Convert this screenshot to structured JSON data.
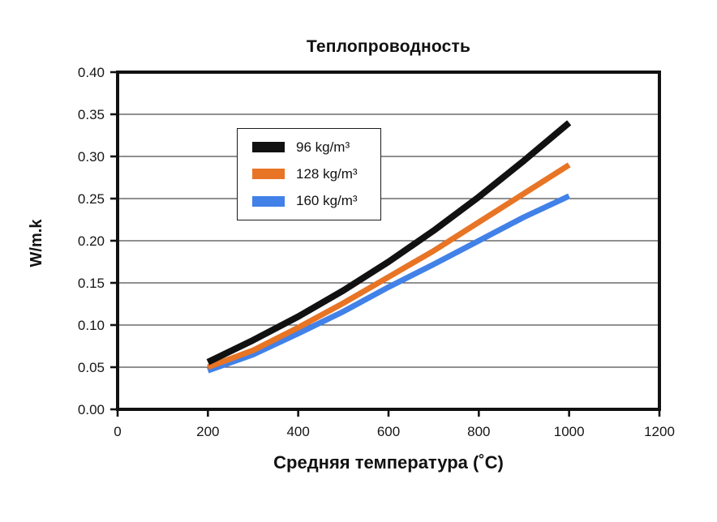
{
  "chart_data": {
    "type": "line",
    "title": "Теплопроводность",
    "xlabel": "Средняя температура (˚C)",
    "ylabel": "W/m.k",
    "xlim": [
      0,
      1200
    ],
    "ylim": [
      0,
      0.4
    ],
    "x_ticks": [
      0,
      200,
      400,
      600,
      800,
      1000,
      1200
    ],
    "y_ticks": [
      "0.00",
      "0.05",
      "0.10",
      "0.15",
      "0.20",
      "0.25",
      "0.30",
      "0.35",
      "0.40"
    ],
    "grid": "horizontal-only",
    "gridline_color": "#4d4d4d",
    "axis_color": "#111111",
    "legend_position": "inside-upper-left",
    "x": [
      200,
      300,
      400,
      500,
      600,
      700,
      800,
      900,
      1000
    ],
    "series": [
      {
        "name": "96 kg/m³",
        "color": "#111111",
        "values": [
          0.056,
          0.082,
          0.11,
          0.141,
          0.175,
          0.212,
          0.252,
          0.295,
          0.34
        ]
      },
      {
        "name": "128 kg/m³",
        "color": "#e87425",
        "values": [
          0.05,
          0.07,
          0.097,
          0.126,
          0.157,
          0.188,
          0.222,
          0.256,
          0.29
        ]
      },
      {
        "name": "160 kg/m³",
        "color": "#4181e8",
        "values": [
          0.046,
          0.065,
          0.09,
          0.116,
          0.145,
          0.172,
          0.2,
          0.228,
          0.253
        ]
      }
    ]
  }
}
